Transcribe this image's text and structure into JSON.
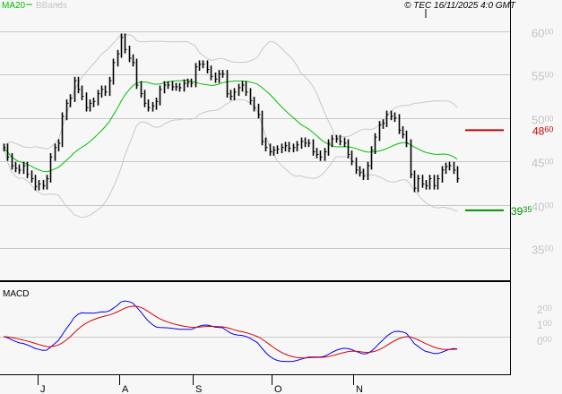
{
  "header": {
    "ma_label": "MA20",
    "bbands_label": "BBands",
    "copyright": "© TEC 16/11/2025 4:0 GMT"
  },
  "colors": {
    "ma": "#00c000",
    "bbands": "#c8c8c8",
    "bars": "#000000",
    "resistance": "#cc0000",
    "support": "#009000",
    "macd": "#0000ee",
    "signal": "#dd0000",
    "grid": "#c8c8c8"
  },
  "chart_data": [
    {
      "type": "bar",
      "subtype": "price-bars-with-ma20-and-bollinger-bands",
      "legend": [
        "MA20",
        "BBands"
      ],
      "legend_placement": "top-left",
      "y_ticks": [
        "60.00",
        "55.00",
        "50.00",
        "45.00",
        "40.00",
        "35.00"
      ],
      "y_tick_values": [
        60,
        55,
        50,
        45,
        40,
        35
      ],
      "ylim": [
        33.5,
        62
      ],
      "x_ticks": [
        "J",
        "A",
        "S",
        "O",
        "N"
      ],
      "grid": true,
      "closes": [
        46.6,
        45.5,
        44.5,
        44.2,
        44.0,
        44.5,
        43.5,
        43.0,
        42.1,
        42.4,
        42.2,
        43.0,
        45.5,
        46.6,
        47.1,
        50.2,
        51.7,
        52.3,
        54.3,
        53.3,
        52.5,
        51.2,
        51.7,
        51.9,
        52.8,
        53.3,
        53.0,
        54.3,
        56.4,
        57.4,
        59.3,
        57.9,
        56.9,
        56.4,
        53.8,
        52.8,
        51.7,
        51.2,
        51.4,
        51.9,
        53.3,
        53.8,
        53.8,
        53.6,
        53.6,
        53.5,
        54.0,
        54.1,
        54.0,
        55.9,
        56.2,
        56.2,
        55.6,
        54.8,
        54.5,
        55.1,
        55.1,
        52.8,
        52.5,
        53.0,
        53.5,
        53.8,
        53.0,
        52.0,
        51.2,
        50.4,
        47.3,
        46.6,
        46.1,
        46.3,
        46.4,
        46.6,
        46.8,
        46.5,
        46.6,
        46.9,
        47.3,
        47.1,
        47.1,
        46.1,
        45.8,
        45.5,
        46.1,
        47.1,
        47.6,
        47.6,
        47.3,
        47.1,
        45.8,
        45.0,
        44.0,
        43.7,
        43.3,
        44.5,
        46.3,
        47.8,
        49.2,
        49.4,
        50.4,
        50.2,
        50.0,
        48.6,
        48.1,
        47.1,
        43.5,
        41.9,
        43.0,
        42.4,
        42.2,
        43.0,
        42.2,
        43.0,
        44.0,
        44.4,
        44.5,
        44.0,
        43.0
      ],
      "resistance": {
        "value": 48.6,
        "label": "48.60"
      },
      "support": {
        "value": 39.35,
        "label": "39.35"
      }
    },
    {
      "type": "line",
      "title": "MACD",
      "series": [
        "MACD",
        "Signal"
      ],
      "y_ticks": [
        "2.00",
        "1.00",
        "0.00"
      ],
      "y_tick_values": [
        2,
        1,
        0
      ],
      "x_ticks": [
        "J",
        "A",
        "S",
        "O",
        "N"
      ]
    }
  ]
}
